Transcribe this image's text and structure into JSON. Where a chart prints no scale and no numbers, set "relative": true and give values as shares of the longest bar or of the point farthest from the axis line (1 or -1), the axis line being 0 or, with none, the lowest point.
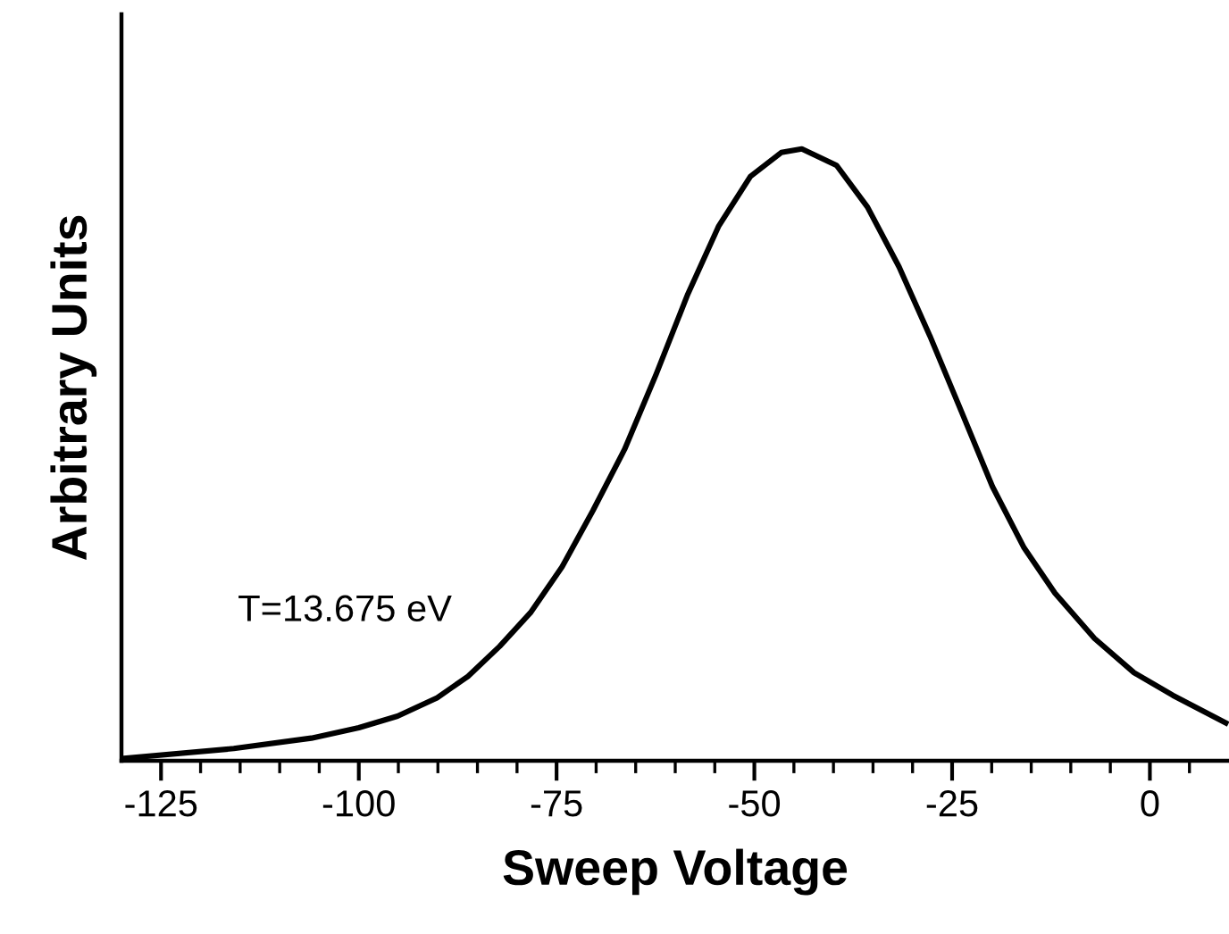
{
  "chart_data": {
    "type": "line",
    "xlabel": "Sweep Voltage",
    "ylabel": "Arbitrary Units",
    "relative": true,
    "annotations": [
      "T=13.675 eV"
    ],
    "xlim": [
      -130,
      10
    ],
    "xticks": [
      -125,
      -100,
      -75,
      -50,
      -25,
      0,
      {
        "value": -120,
        "label": null
      },
      {
        "value": -115,
        "label": null
      },
      {
        "value": -110,
        "label": null
      },
      {
        "value": -105,
        "label": null
      },
      {
        "value": -95,
        "label": null
      },
      {
        "value": -90,
        "label": null
      },
      {
        "value": -85,
        "label": null
      },
      {
        "value": -80,
        "label": null
      },
      {
        "value": -70,
        "label": null
      },
      {
        "value": -65,
        "label": null
      },
      {
        "value": -60,
        "label": null
      },
      {
        "value": -55,
        "label": null
      },
      {
        "value": -45,
        "label": null
      },
      {
        "value": -40,
        "label": null
      },
      {
        "value": -35,
        "label": null
      },
      {
        "value": -30,
        "label": null
      },
      {
        "value": -20,
        "label": null
      },
      {
        "value": -15,
        "label": null
      },
      {
        "value": -10,
        "label": null
      },
      {
        "value": -5,
        "label": null
      },
      {
        "value": 5,
        "label": null
      }
    ],
    "grid": false,
    "legend": false,
    "marker": "none",
    "line_style": "solid",
    "series": [
      {
        "color": "#000000",
        "x": [
          -129.7,
          -115.8,
          -106.0,
          -100.0,
          -95.1,
          -90.1,
          -86.2,
          -82.2,
          -78.3,
          -74.3,
          -70.4,
          -66.4,
          -62.4,
          -58.4,
          -54.5,
          -50.5,
          -46.6,
          -44.0,
          -39.6,
          -35.7,
          -31.7,
          -27.8,
          -23.8,
          -19.9,
          -15.9,
          -12.0,
          -7.0,
          -2.0,
          2.9,
          9.6
        ],
        "values": [
          0.004,
          0.02,
          0.037,
          0.054,
          0.073,
          0.103,
          0.138,
          0.187,
          0.242,
          0.317,
          0.409,
          0.509,
          0.632,
          0.763,
          0.874,
          0.955,
          0.994,
          1.0,
          0.973,
          0.905,
          0.807,
          0.694,
          0.57,
          0.448,
          0.348,
          0.274,
          0.2,
          0.144,
          0.107,
          0.062
        ]
      }
    ]
  }
}
